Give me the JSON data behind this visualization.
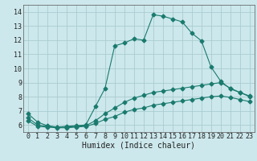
{
  "xlabel": "Humidex (Indice chaleur)",
  "bg_color": "#cce8ec",
  "grid_color": "#aaccd0",
  "line_color": "#1a7a6e",
  "xlim": [
    -0.5,
    23.5
  ],
  "ylim": [
    5.5,
    14.5
  ],
  "xticks": [
    0,
    1,
    2,
    3,
    4,
    5,
    6,
    7,
    8,
    9,
    10,
    11,
    12,
    13,
    14,
    15,
    16,
    17,
    18,
    19,
    20,
    21,
    22,
    23
  ],
  "yticks": [
    6,
    7,
    8,
    9,
    10,
    11,
    12,
    13,
    14
  ],
  "line1_x": [
    0,
    1,
    2,
    3,
    4,
    5,
    6,
    7,
    8,
    9,
    10,
    11,
    12,
    13,
    14,
    15,
    16,
    17,
    18,
    19,
    20,
    21,
    22,
    23
  ],
  "line1_y": [
    6.8,
    6.2,
    5.95,
    5.85,
    5.9,
    5.95,
    6.0,
    7.3,
    8.6,
    11.6,
    11.8,
    12.1,
    12.0,
    13.8,
    13.7,
    13.5,
    13.3,
    12.5,
    11.95,
    10.1,
    9.1,
    8.55,
    8.3,
    8.05
  ],
  "line2_x": [
    0,
    1,
    2,
    3,
    4,
    5,
    6,
    7,
    8,
    9,
    10,
    11,
    12,
    13,
    14,
    15,
    16,
    17,
    18,
    19,
    20,
    21,
    22,
    23
  ],
  "line2_y": [
    6.5,
    6.0,
    5.9,
    5.85,
    5.85,
    5.9,
    5.95,
    6.3,
    6.8,
    7.2,
    7.6,
    7.9,
    8.1,
    8.3,
    8.4,
    8.5,
    8.6,
    8.7,
    8.8,
    8.9,
    9.0,
    8.6,
    8.3,
    8.0
  ],
  "line3_x": [
    0,
    1,
    2,
    3,
    4,
    5,
    6,
    7,
    8,
    9,
    10,
    11,
    12,
    13,
    14,
    15,
    16,
    17,
    18,
    19,
    20,
    21,
    22,
    23
  ],
  "line3_y": [
    6.3,
    5.9,
    5.85,
    5.8,
    5.8,
    5.85,
    5.9,
    6.1,
    6.4,
    6.6,
    6.9,
    7.1,
    7.2,
    7.4,
    7.5,
    7.6,
    7.7,
    7.8,
    7.9,
    8.0,
    8.05,
    7.95,
    7.8,
    7.65
  ],
  "tick_fontsize": 6,
  "xlabel_fontsize": 7,
  "marker_size": 2.5
}
